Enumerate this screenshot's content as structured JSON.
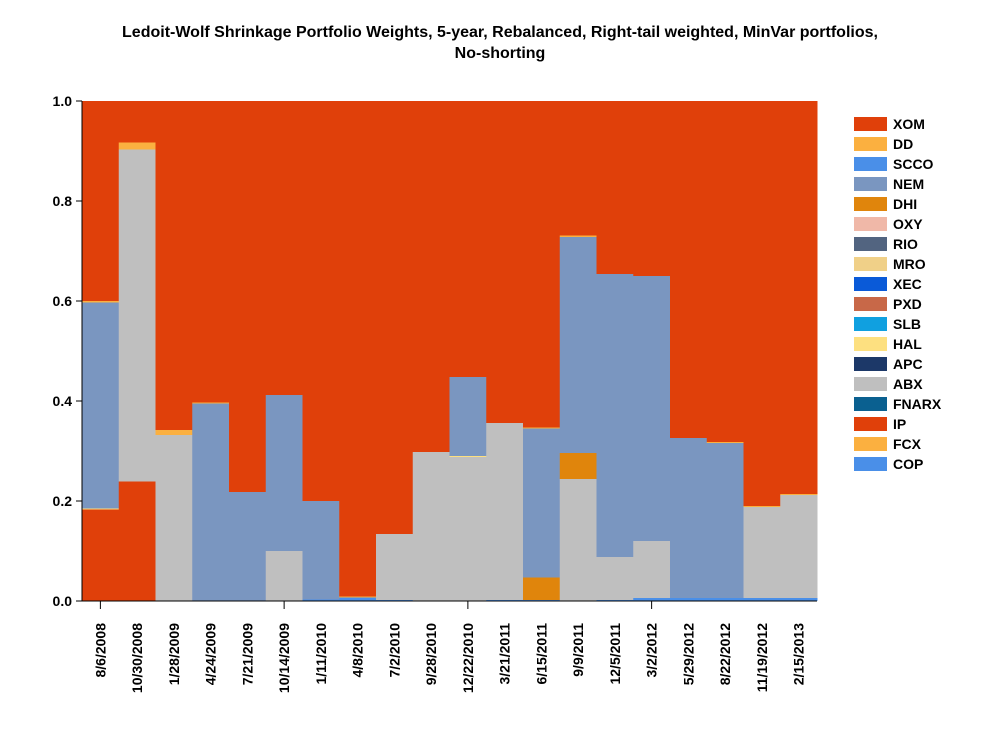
{
  "chart_data": {
    "type": "bar",
    "stacked": true,
    "title": "Ledoit-Wolf Shrinkage Portfolio Weights, 5-year, Rebalanced, Right-tail weighted, MinVar portfolios, No-shorting",
    "title_lines": [
      "Ledoit-Wolf Shrinkage Portfolio Weights, 5-year, Rebalanced, Right-tail weighted, MinVar portfolios,",
      "No-shorting"
    ],
    "xlabel": "",
    "ylabel": "",
    "ylim": [
      0,
      1
    ],
    "yticks": [
      "0.0",
      "0.2",
      "0.4",
      "0.6",
      "0.8",
      "1.0"
    ],
    "xticks_marked": [
      "8/6/2008",
      "10/14/2009",
      "12/22/2010",
      "3/2/2012"
    ],
    "legend_position": "right",
    "categories": [
      "8/6/2008",
      "10/30/2008",
      "1/28/2009",
      "4/24/2009",
      "7/21/2009",
      "10/14/2009",
      "1/11/2010",
      "4/8/2010",
      "7/2/2010",
      "9/28/2010",
      "12/22/2010",
      "3/21/2011",
      "6/15/2011",
      "9/9/2011",
      "12/5/2011",
      "3/2/2012",
      "5/29/2012",
      "8/22/2012",
      "11/19/2012",
      "2/15/2013"
    ],
    "legend": [
      "XOM",
      "DD",
      "SCCO",
      "NEM",
      "DHI",
      "OXY",
      "RIO",
      "MRO",
      "XEC",
      "PXD",
      "SLB",
      "HAL",
      "APC",
      "ABX",
      "FNARX",
      "IP",
      "FCX",
      "COP"
    ],
    "series": [
      {
        "name": "COP",
        "color": "#4a8fe8",
        "values": [
          0,
          0,
          0,
          0,
          0,
          0,
          0.003,
          0.007,
          0.002,
          0,
          0,
          0.002,
          0.002,
          0,
          0.002,
          0.006,
          0.006,
          0.006,
          0.006,
          0.006
        ]
      },
      {
        "name": "FCX",
        "color": "#fbb040",
        "values": [
          0,
          0,
          0,
          0,
          0,
          0,
          0,
          0.002,
          0,
          0,
          0,
          0,
          0,
          0,
          0,
          0,
          0,
          0,
          0,
          0
        ]
      },
      {
        "name": "IP",
        "color": "#e0400a",
        "values": [
          0.183,
          0.239,
          0,
          0,
          0,
          0,
          0,
          0,
          0,
          0,
          0,
          0,
          0,
          0,
          0,
          0,
          0,
          0,
          0,
          0
        ]
      },
      {
        "name": "FNARX",
        "color": "#0a6090",
        "values": [
          0,
          0,
          0,
          0,
          0,
          0,
          0,
          0,
          0,
          0,
          0,
          0,
          0,
          0,
          0,
          0,
          0,
          0,
          0,
          0
        ]
      },
      {
        "name": "ABX",
        "color": "#bfbfbf",
        "values": [
          0,
          0.664,
          0.332,
          0,
          0,
          0.1,
          0,
          0,
          0.132,
          0.298,
          0.288,
          0.354,
          0,
          0.244,
          0.086,
          0.114,
          0,
          0,
          0.182,
          0.206
        ]
      },
      {
        "name": "APC",
        "color": "#1c3868",
        "values": [
          0,
          0,
          0,
          0,
          0,
          0,
          0,
          0,
          0,
          0,
          0,
          0,
          0,
          0,
          0,
          0,
          0,
          0,
          0,
          0
        ]
      },
      {
        "name": "HAL",
        "color": "#fde080",
        "values": [
          0.002,
          0,
          0,
          0,
          0,
          0,
          0,
          0,
          0,
          0,
          0.002,
          0,
          0,
          0,
          0,
          0,
          0,
          0,
          0,
          0
        ]
      },
      {
        "name": "SLB",
        "color": "#10a0e0",
        "values": [
          0,
          0,
          0,
          0,
          0,
          0,
          0,
          0,
          0,
          0,
          0,
          0,
          0,
          0,
          0,
          0,
          0,
          0,
          0,
          0
        ]
      },
      {
        "name": "PXD",
        "color": "#c86848",
        "values": [
          0,
          0,
          0,
          0,
          0,
          0,
          0,
          0,
          0,
          0,
          0,
          0,
          0,
          0,
          0,
          0,
          0,
          0,
          0,
          0
        ]
      },
      {
        "name": "XEC",
        "color": "#0a5ad8",
        "values": [
          0,
          0,
          0,
          0,
          0,
          0,
          0,
          0,
          0,
          0,
          0,
          0,
          0,
          0,
          0,
          0,
          0,
          0,
          0,
          0
        ]
      },
      {
        "name": "MRO",
        "color": "#f0d088",
        "values": [
          0,
          0,
          0,
          0,
          0,
          0,
          0,
          0,
          0,
          0,
          0,
          0,
          0,
          0,
          0,
          0,
          0,
          0,
          0,
          0
        ]
      },
      {
        "name": "RIO",
        "color": "#526480",
        "values": [
          0,
          0,
          0,
          0,
          0,
          0,
          0,
          0,
          0,
          0,
          0,
          0,
          0,
          0,
          0,
          0,
          0,
          0,
          0,
          0
        ]
      },
      {
        "name": "OXY",
        "color": "#f0b8a8",
        "values": [
          0,
          0,
          0,
          0,
          0,
          0,
          0,
          0,
          0,
          0,
          0,
          0,
          0,
          0,
          0,
          0,
          0,
          0,
          0,
          0
        ]
      },
      {
        "name": "DHI",
        "color": "#e0850c",
        "values": [
          0,
          0,
          0,
          0,
          0,
          0,
          0,
          0,
          0,
          0,
          0,
          0,
          0.045,
          0.052,
          0,
          0,
          0,
          0,
          0,
          0
        ]
      },
      {
        "name": "NEM",
        "color": "#7a96c0",
        "values": [
          0.412,
          0,
          0,
          0.395,
          0.218,
          0.312,
          0.197,
          0,
          0,
          0,
          0.158,
          0,
          0.298,
          0.432,
          0.566,
          0.53,
          0.32,
          0.31,
          0,
          0
        ]
      },
      {
        "name": "SCCO",
        "color": "#4a8fe8",
        "values": [
          0,
          0,
          0,
          0,
          0,
          0,
          0,
          0,
          0,
          0,
          0,
          0,
          0,
          0,
          0,
          0,
          0,
          0,
          0,
          0
        ]
      },
      {
        "name": "DD",
        "color": "#fbb040",
        "values": [
          0.003,
          0.014,
          0.01,
          0.002,
          0,
          0,
          0,
          0,
          0,
          0,
          0,
          0,
          0.002,
          0.003,
          0,
          0,
          0,
          0.002,
          0.002,
          0.002
        ]
      },
      {
        "name": "XOM",
        "color": "#e0400a",
        "values": [
          0.4,
          0.083,
          0.658,
          0.603,
          0.782,
          0.588,
          0.8,
          0.991,
          0.866,
          0.702,
          0.552,
          0.644,
          0.653,
          0.269,
          0.346,
          0.35,
          0.674,
          0.682,
          0.81,
          0.786
        ]
      }
    ]
  }
}
